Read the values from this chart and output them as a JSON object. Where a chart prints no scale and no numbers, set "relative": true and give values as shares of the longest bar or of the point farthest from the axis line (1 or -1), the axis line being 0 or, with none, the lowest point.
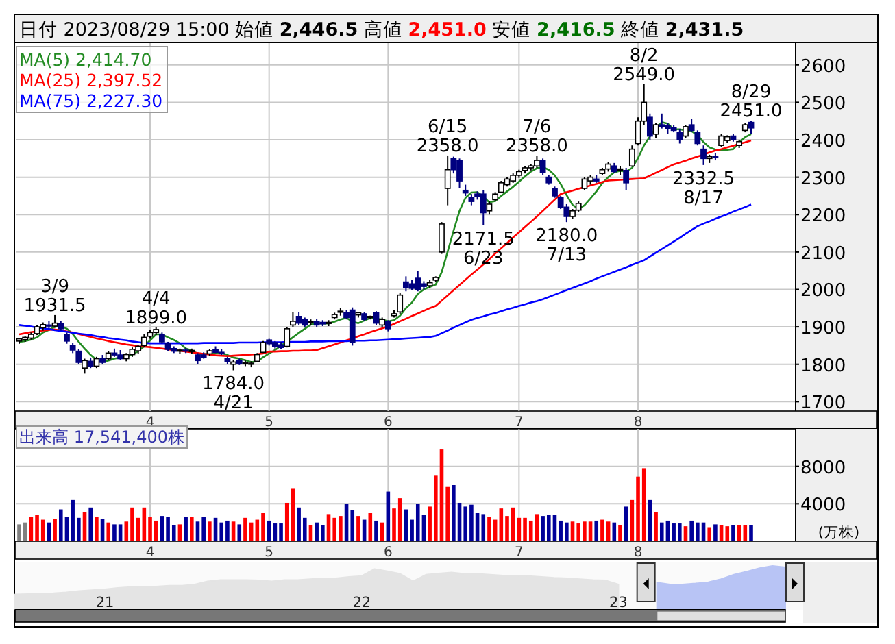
{
  "chart_data": [
    {
      "type": "candlestick",
      "title": "日付 2023/08/29 15:00 始値 **2,446.5** 高値 **2,451.0** 安値 **2,416.5** 終値 **2,431.5**",
      "ylim": [
        1675,
        2660
      ],
      "yticks": [
        1700,
        1800,
        1900,
        2000,
        2100,
        2200,
        2300,
        2400,
        2500,
        2600
      ],
      "grid": true,
      "legend": "top left",
      "categories": [
        null,
        null,
        null,
        null,
        null,
        null,
        null,
        null,
        null,
        null,
        null,
        null,
        null,
        null,
        null,
        null,
        null,
        null,
        null,
        null,
        null,
        null,
        "4",
        null,
        null,
        null,
        null,
        null,
        null,
        null,
        null,
        null,
        null,
        null,
        null,
        null,
        null,
        null,
        null,
        null,
        null,
        null,
        "5",
        null,
        null,
        null,
        null,
        null,
        null,
        null,
        null,
        null,
        null,
        null,
        null,
        null,
        null,
        null,
        null,
        null,
        null,
        null,
        "6",
        null,
        null,
        null,
        null,
        null,
        null,
        null,
        null,
        null,
        null,
        null,
        null,
        null,
        null,
        null,
        null,
        null,
        null,
        null,
        null,
        null,
        "7",
        null,
        null,
        null,
        null,
        null,
        null,
        null,
        null,
        null,
        null,
        null,
        null,
        null,
        null,
        null,
        null,
        null,
        null,
        null,
        "8",
        null,
        null,
        null,
        null,
        null,
        null,
        null,
        null,
        null,
        null,
        null,
        null,
        null,
        null,
        null,
        null,
        null,
        null,
        null
      ],
      "ohlc": [
        [
          1862,
          1870,
          1855,
          1868
        ],
        [
          1866,
          1875,
          1860,
          1872
        ],
        [
          1870,
          1885,
          1866,
          1880
        ],
        [
          1882,
          1905,
          1878,
          1900
        ],
        [
          1898,
          1912,
          1890,
          1906
        ],
        [
          1905,
          1915,
          1896,
          1902
        ],
        [
          1902,
          1931.5,
          1898,
          1910
        ],
        [
          1908,
          1915,
          1890,
          1895
        ],
        [
          1880,
          1885,
          1855,
          1862
        ],
        [
          1850,
          1858,
          1830,
          1838
        ],
        [
          1835,
          1840,
          1800,
          1805
        ],
        [
          1790,
          1815,
          1775,
          1810
        ],
        [
          1808,
          1818,
          1790,
          1795
        ],
        [
          1795,
          1820,
          1790,
          1815
        ],
        [
          1815,
          1825,
          1800,
          1805
        ],
        [
          1815,
          1835,
          1810,
          1830
        ],
        [
          1830,
          1842,
          1820,
          1825
        ],
        [
          1825,
          1838,
          1812,
          1815
        ],
        [
          1815,
          1830,
          1808,
          1826
        ],
        [
          1826,
          1845,
          1820,
          1840
        ],
        [
          1836,
          1852,
          1828,
          1848
        ],
        [
          1850,
          1880,
          1845,
          1872
        ],
        [
          1875,
          1892,
          1868,
          1885
        ],
        [
          1885,
          1899,
          1878,
          1893
        ],
        [
          1880,
          1885,
          1855,
          1860
        ],
        [
          1855,
          1860,
          1835,
          1840
        ],
        [
          1842,
          1848,
          1830,
          1835
        ],
        [
          1836,
          1842,
          1828,
          1838
        ],
        [
          1838,
          1844,
          1830,
          1836
        ],
        [
          1835,
          1842,
          1828,
          1837
        ],
        [
          1825,
          1830,
          1800,
          1810
        ],
        [
          1825,
          1832,
          1815,
          1818
        ],
        [
          1828,
          1840,
          1822,
          1836
        ],
        [
          1840,
          1848,
          1830,
          1832
        ],
        [
          1832,
          1840,
          1825,
          1828
        ],
        [
          1815,
          1820,
          1800,
          1808
        ],
        [
          1800,
          1812,
          1784,
          1806
        ],
        [
          1810,
          1815,
          1798,
          1802
        ],
        [
          1802,
          1810,
          1795,
          1805
        ],
        [
          1800,
          1808,
          1792,
          1803
        ],
        [
          1808,
          1830,
          1805,
          1826
        ],
        [
          1832,
          1862,
          1830,
          1858
        ],
        [
          1865,
          1868,
          1850,
          1855
        ],
        [
          1858,
          1862,
          1842,
          1848
        ],
        [
          1852,
          1860,
          1840,
          1845
        ],
        [
          1848,
          1900,
          1845,
          1895
        ],
        [
          1905,
          1940,
          1900,
          1915
        ],
        [
          1928,
          1940,
          1905,
          1910
        ],
        [
          1920,
          1925,
          1900,
          1905
        ],
        [
          1912,
          1920,
          1905,
          1914
        ],
        [
          1915,
          1922,
          1900,
          1905
        ],
        [
          1912,
          1918,
          1902,
          1908
        ],
        [
          1910,
          1918,
          1902,
          1912
        ],
        [
          1925,
          1938,
          1920,
          1933
        ],
        [
          1940,
          1950,
          1930,
          1942
        ],
        [
          1938,
          1945,
          1920,
          1925
        ],
        [
          1945,
          1952,
          1850,
          1858
        ],
        [
          1932,
          1940,
          1925,
          1938
        ],
        [
          1935,
          1940,
          1915,
          1920
        ],
        [
          1925,
          1930,
          1920,
          1928
        ],
        [
          1938,
          1942,
          1905,
          1910
        ],
        [
          1905,
          1925,
          1898,
          1920
        ],
        [
          1915,
          1918,
          1888,
          1895
        ],
        [
          1930,
          1945,
          1925,
          1935
        ],
        [
          1940,
          1990,
          1935,
          1985
        ],
        [
          2020,
          2035,
          1995,
          2005
        ],
        [
          2015,
          2025,
          1998,
          2003
        ],
        [
          2030,
          2050,
          1995,
          2000
        ],
        [
          2015,
          2022,
          2000,
          2008
        ],
        [
          2010,
          2025,
          2005,
          2018
        ],
        [
          2025,
          2035,
          2020,
          2032
        ],
        [
          2100,
          2180,
          2095,
          2175
        ],
        [
          2270,
          2358,
          2225,
          2320
        ],
        [
          2350,
          2355,
          2310,
          2320
        ],
        [
          2345,
          2350,
          2270,
          2290
        ],
        [
          2265,
          2280,
          2250,
          2258
        ],
        [
          2245,
          2255,
          2225,
          2235
        ],
        [
          2255,
          2262,
          2240,
          2248
        ],
        [
          2255,
          2265,
          2171.5,
          2205
        ],
        [
          2210,
          2235,
          2200,
          2228
        ],
        [
          2240,
          2260,
          2235,
          2255
        ],
        [
          2260,
          2290,
          2258,
          2285
        ],
        [
          2280,
          2300,
          2275,
          2295
        ],
        [
          2290,
          2310,
          2285,
          2305
        ],
        [
          2305,
          2320,
          2298,
          2315
        ],
        [
          2318,
          2330,
          2310,
          2325
        ],
        [
          2325,
          2335,
          2318,
          2330
        ],
        [
          2330,
          2358,
          2325,
          2345
        ],
        [
          2345,
          2350,
          2305,
          2312
        ],
        [
          2300,
          2305,
          2280,
          2285
        ],
        [
          2270,
          2275,
          2245,
          2250
        ],
        [
          2245,
          2250,
          2215,
          2220
        ],
        [
          2220,
          2228,
          2180,
          2195
        ],
        [
          2195,
          2215,
          2188,
          2210
        ],
        [
          2212,
          2235,
          2208,
          2230
        ],
        [
          2270,
          2300,
          2265,
          2295
        ],
        [
          2290,
          2305,
          2280,
          2300
        ],
        [
          2295,
          2305,
          2285,
          2290
        ],
        [
          2310,
          2325,
          2305,
          2320
        ],
        [
          2322,
          2340,
          2315,
          2335
        ],
        [
          2330,
          2338,
          2312,
          2315
        ],
        [
          2320,
          2330,
          2305,
          2322
        ],
        [
          2318,
          2325,
          2265,
          2285
        ],
        [
          2330,
          2385,
          2328,
          2375
        ],
        [
          2390,
          2460,
          2385,
          2450
        ],
        [
          2450,
          2549,
          2440,
          2500
        ],
        [
          2460,
          2470,
          2400,
          2410
        ],
        [
          2415,
          2445,
          2405,
          2440
        ],
        [
          2440,
          2470,
          2430,
          2435
        ],
        [
          2438,
          2445,
          2415,
          2430
        ],
        [
          2432,
          2440,
          2420,
          2425
        ],
        [
          2420,
          2428,
          2390,
          2400
        ],
        [
          2410,
          2440,
          2405,
          2435
        ],
        [
          2440,
          2455,
          2420,
          2425
        ],
        [
          2420,
          2425,
          2385,
          2390
        ],
        [
          2375,
          2385,
          2332.5,
          2350
        ],
        [
          2350,
          2360,
          2338,
          2355
        ],
        [
          2355,
          2365,
          2345,
          2352
        ],
        [
          2385,
          2415,
          2380,
          2410
        ],
        [
          2398,
          2412,
          2392,
          2408
        ],
        [
          2410,
          2415,
          2395,
          2400
        ],
        [
          2385,
          2400,
          2378,
          2395
        ],
        [
          2425,
          2445,
          2420,
          2440
        ],
        [
          2446.5,
          2451,
          2416.5,
          2431.5
        ]
      ],
      "series": [
        {
          "type": "line",
          "name": "MA(5) 2,414.70",
          "color": "#228b22",
          "values": [
            1860,
            1862,
            1866,
            1872,
            1885,
            1892,
            1900,
            1903,
            1895,
            1881,
            1860,
            1842,
            1825,
            1812,
            1806,
            1810,
            1815,
            1818,
            1820,
            1826,
            1835,
            1848,
            1864,
            1880,
            1880,
            1872,
            1865,
            1856,
            1842,
            1837,
            1828,
            1828,
            1827,
            1829,
            1830,
            1825,
            1818,
            1815,
            1811,
            1806,
            1808,
            1819,
            1829,
            1838,
            1850,
            1860,
            1872,
            1884,
            1895,
            1906,
            1910,
            1909,
            1909,
            1914,
            1920,
            1924,
            1914,
            1910,
            1917,
            1924,
            1922,
            1920,
            1915,
            1918,
            1930,
            1950,
            1965,
            1988,
            2000,
            2007,
            2013,
            2046,
            2101,
            2157,
            2210,
            2245,
            2259,
            2260,
            2248,
            2233,
            2236,
            2250,
            2262,
            2274,
            2288,
            2302,
            2315,
            2324,
            2327,
            2320,
            2305,
            2282,
            2252,
            2226,
            2215,
            2225,
            2243,
            2262,
            2284,
            2300,
            2313,
            2317,
            2315,
            2325,
            2351,
            2385,
            2409,
            2432,
            2447,
            2443,
            2428,
            2428,
            2425,
            2423,
            2412,
            2394,
            2380,
            2374,
            2372,
            2373,
            2375,
            2393,
            2407,
            2415
          ]
        },
        {
          "type": "line",
          "name": "MA(25) 2,397.52",
          "color": "#ff0000",
          "values": [
            1880,
            1883,
            1886,
            1888,
            1890,
            1892,
            1893,
            1891,
            1888,
            1885,
            1881,
            1877,
            1873,
            1869,
            1866,
            1862,
            1859,
            1856,
            1853,
            1851,
            1848,
            1847,
            1846,
            1844,
            1842,
            1840,
            1838,
            1836,
            1834,
            1832,
            1830,
            1828,
            1826,
            1824,
            1823,
            1822,
            1823,
            1824,
            1825,
            1826,
            1827,
            1829,
            1834,
            1834,
            1835,
            1835,
            1836,
            1836,
            1837,
            1837,
            1838,
            1843,
            1848,
            1853,
            1858,
            1864,
            1869,
            1875,
            1880,
            1886,
            1891,
            1896,
            1901,
            1908,
            1915,
            1922,
            1929,
            1936,
            1943,
            1950,
            1956,
            1970,
            1984,
            1998,
            2012,
            2026,
            2040,
            2053,
            2067,
            2081,
            2096,
            2110,
            2124,
            2139,
            2153,
            2167,
            2181,
            2195,
            2210,
            2225,
            2240,
            2255,
            2260,
            2264,
            2269,
            2273,
            2278,
            2282,
            2287,
            2291,
            2292,
            2293,
            2294,
            2295,
            2296,
            2297,
            2304,
            2312,
            2319,
            2327,
            2334,
            2339,
            2344,
            2350,
            2355,
            2360,
            2366,
            2371,
            2375,
            2380,
            2384,
            2389,
            2393,
            2398
          ]
        },
        {
          "type": "line",
          "name": "MA(75) 2,227.30",
          "color": "#0000ff",
          "values": [
            1905,
            1903,
            1901,
            1898,
            1896,
            1894,
            1891,
            1889,
            1887,
            1884,
            1882,
            1880,
            1878,
            1875,
            1873,
            1870,
            1868,
            1866,
            1864,
            1861,
            1859,
            1857,
            1856,
            1856,
            1856,
            1856,
            1856,
            1856,
            1856,
            1856,
            1856,
            1857,
            1857,
            1857,
            1857,
            1857,
            1857,
            1858,
            1858,
            1858,
            1858,
            1859,
            1859,
            1859,
            1859,
            1860,
            1860,
            1860,
            1860,
            1861,
            1861,
            1861,
            1862,
            1862,
            1862,
            1862,
            1863,
            1863,
            1863,
            1864,
            1864,
            1865,
            1866,
            1867,
            1868,
            1869,
            1870,
            1871,
            1872,
            1873,
            1876,
            1883,
            1890,
            1898,
            1905,
            1912,
            1919,
            1924,
            1928,
            1933,
            1937,
            1942,
            1947,
            1951,
            1956,
            1960,
            1965,
            1969,
            1974,
            1980,
            1986,
            1992,
            1998,
            2004,
            2010,
            2016,
            2022,
            2029,
            2035,
            2041,
            2047,
            2053,
            2059,
            2066,
            2072,
            2078,
            2088,
            2098,
            2108,
            2118,
            2128,
            2138,
            2149,
            2159,
            2169,
            2176,
            2182,
            2189,
            2195,
            2201,
            2208,
            2214,
            2220,
            2227
          ]
        }
      ],
      "annotations": [
        {
          "text": "3/9 1931.5",
          "y": 1931.5
        },
        {
          "text": "4/4 1899.0",
          "y": 1899
        },
        {
          "text": "1784.0 4/21",
          "y": 1784
        },
        {
          "text": "6/15 2358.0",
          "y": 2358
        },
        {
          "text": "2171.5 6/23",
          "y": 2171.5
        },
        {
          "text": "7/6 2358.0",
          "y": 2358
        },
        {
          "text": "2180.0 7/13",
          "y": 2180
        },
        {
          "text": "8/2 2549.0",
          "y": 2549
        },
        {
          "text": "2332.5 8/17",
          "y": 2332.5
        },
        {
          "text": "8/29 2451.0",
          "y": 2451
        }
      ]
    },
    {
      "type": "bar",
      "title": "出来高 17,541,400株",
      "ylabel": "(万株)",
      "ylim": [
        0,
        12000
      ],
      "yticks": [
        4000,
        8000
      ],
      "grid": true,
      "categories": [
        null,
        null,
        null,
        null,
        null,
        null,
        null,
        null,
        null,
        null,
        null,
        null,
        null,
        null,
        null,
        null,
        null,
        null,
        null,
        null,
        null,
        null,
        "4",
        null,
        null,
        null,
        null,
        null,
        null,
        null,
        null,
        null,
        null,
        null,
        null,
        null,
        null,
        null,
        null,
        null,
        null,
        null,
        "5",
        null,
        null,
        null,
        null,
        null,
        null,
        null,
        null,
        null,
        null,
        null,
        null,
        null,
        null,
        null,
        null,
        null,
        null,
        null,
        "6",
        null,
        null,
        null,
        null,
        null,
        null,
        null,
        null,
        null,
        null,
        null,
        null,
        null,
        null,
        null,
        null,
        null,
        null,
        null,
        null,
        null,
        "7",
        null,
        null,
        null,
        null,
        null,
        null,
        null,
        null,
        null,
        null,
        null,
        null,
        null,
        null,
        null,
        null,
        null,
        null,
        null,
        "8",
        null,
        null,
        null,
        null,
        null,
        null,
        null,
        null,
        null,
        null,
        null,
        null,
        null,
        null,
        null,
        null,
        null,
        null,
        null
      ],
      "values": [
        1800,
        2000,
        2600,
        2800,
        2300,
        2000,
        2400,
        3400,
        2600,
        4400,
        2500,
        3100,
        3600,
        2600,
        2400,
        2000,
        1800,
        1800,
        2100,
        3600,
        2500,
        3600,
        2600,
        2200,
        2700,
        2600,
        1700,
        1800,
        2600,
        2600,
        2100,
        2600,
        2100,
        2500,
        2000,
        2200,
        2100,
        1800,
        2500,
        2000,
        2300,
        3000,
        2200,
        1900,
        1900,
        4100,
        5600,
        3600,
        2500,
        1700,
        2000,
        1700,
        2900,
        2500,
        2700,
        4000,
        3300,
        2700,
        2300,
        3000,
        2200,
        2000,
        5300,
        3500,
        4600,
        3400,
        2300,
        4000,
        2800,
        3700,
        7000,
        9800,
        5800,
        6000,
        4100,
        3700,
        3900,
        3000,
        2900,
        2600,
        2300,
        3500,
        2700,
        3600,
        2500,
        2500,
        2200,
        2900,
        2700,
        2800,
        2800,
        2200,
        2000,
        2100,
        1900,
        2100,
        2100,
        2200,
        2300,
        2100,
        2000,
        1700,
        3700,
        4400,
        6900,
        7800,
        4400,
        3100,
        2000,
        2200,
        1900,
        1900,
        1600,
        2200,
        2000,
        2000,
        1500,
        1800,
        1700,
        1600,
        1700,
        1700,
        1700,
        1700
      ],
      "colors": [
        "#808080",
        "#808080",
        "#ff0000",
        "#ff0000",
        "#ff0000",
        "#000099",
        "#ff0000",
        "#000099",
        "#000099",
        "#000099",
        "#000099",
        "#ff0000",
        "#000099",
        "#ff0000",
        "#000099",
        "#ff0000",
        "#000099",
        "#000099",
        "#ff0000",
        "#ff0000",
        "#ff0000",
        "#ff0000",
        "#ff0000",
        "#ff0000",
        "#000099",
        "#000099",
        "#000099",
        "#ff0000",
        "#000099",
        "#ff0000",
        "#000099",
        "#000099",
        "#ff0000",
        "#000099",
        "#000099",
        "#000099",
        "#ff0000",
        "#000099",
        "#ff0000",
        "#ff0000",
        "#ff0000",
        "#ff0000",
        "#000099",
        "#000099",
        "#000099",
        "#ff0000",
        "#ff0000",
        "#000099",
        "#000099",
        "#ff0000",
        "#000099",
        "#000099",
        "#ff0000",
        "#ff0000",
        "#ff0000",
        "#000099",
        "#000099",
        "#ff0000",
        "#000099",
        "#ff0000",
        "#000099",
        "#ff0000",
        "#000099",
        "#ff0000",
        "#ff0000",
        "#000099",
        "#000099",
        "#000099",
        "#000099",
        "#ff0000",
        "#ff0000",
        "#ff0000",
        "#ff0000",
        "#000099",
        "#000099",
        "#000099",
        "#000099",
        "#000099",
        "#000099",
        "#ff0000",
        "#ff0000",
        "#ff0000",
        "#ff0000",
        "#ff0000",
        "#ff0000",
        "#ff0000",
        "#ff0000",
        "#ff0000",
        "#000099",
        "#000099",
        "#000099",
        "#000099",
        "#000099",
        "#ff0000",
        "#ff0000",
        "#ff0000",
        "#ff0000",
        "#000099",
        "#ff0000",
        "#ff0000",
        "#000099",
        "#ff0000",
        "#000099",
        "#ff0000",
        "#ff0000",
        "#ff0000",
        "#000099",
        "#ff0000",
        "#000099",
        "#000099",
        "#000099",
        "#000099",
        "#ff0000",
        "#000099",
        "#000099",
        "#000099",
        "#ff0000",
        "#000099",
        "#ff0000",
        "#ff0000",
        "#000099",
        "#ff0000",
        "#ff0000",
        "#000099"
      ]
    },
    {
      "type": "area",
      "relative": true,
      "categories": [
        null,
        null,
        null,
        null,
        null,
        null,
        null,
        "21",
        null,
        null,
        null,
        null,
        null,
        null,
        null,
        null,
        null,
        null,
        null,
        null,
        null,
        null,
        null,
        null,
        null,
        null,
        null,
        "22",
        null,
        null,
        null,
        null,
        null,
        null,
        null,
        null,
        null,
        null,
        null,
        null,
        null,
        null,
        null,
        null,
        null,
        null,
        null,
        "23",
        null,
        null,
        null,
        null,
        null,
        null,
        null,
        null,
        null,
        null,
        null,
        null,
        null
      ],
      "series": [
        {
          "color": "#e4e4e4",
          "values": [
            0.35,
            0.36,
            0.37,
            0.38,
            0.4,
            0.43,
            0.45,
            0.47,
            0.5,
            0.52,
            0.53,
            0.53,
            0.55,
            0.55,
            0.58,
            0.65,
            0.68,
            0.68,
            0.68,
            0.67,
            0.65,
            0.68,
            0.68,
            0.7,
            0.72,
            0.72,
            0.75,
            0.77,
            0.93,
            0.88,
            0.82,
            0.65,
            0.8,
            0.83,
            0.85,
            0.82,
            0.82,
            0.8,
            0.78,
            0.78,
            0.77,
            0.75,
            0.73,
            0.72,
            0.7,
            0.68,
            0.67,
            0.58,
            null,
            null,
            null,
            null,
            null,
            null,
            null,
            null,
            null,
            null,
            null,
            null,
            null
          ]
        },
        {
          "color": "#b8c4f5",
          "values": [
            null,
            null,
            null,
            null,
            null,
            null,
            null,
            null,
            null,
            null,
            null,
            null,
            null,
            null,
            null,
            null,
            null,
            null,
            null,
            null,
            null,
            null,
            null,
            null,
            null,
            null,
            null,
            null,
            null,
            null,
            null,
            null,
            null,
            null,
            null,
            null,
            null,
            null,
            null,
            null,
            null,
            null,
            null,
            null,
            null,
            null,
            null,
            null,
            null,
            null,
            0.62,
            0.58,
            0.58,
            0.6,
            0.63,
            0.7,
            0.8,
            0.87,
            0.95,
            1,
            0.97
          ]
        }
      ]
    }
  ]
}
